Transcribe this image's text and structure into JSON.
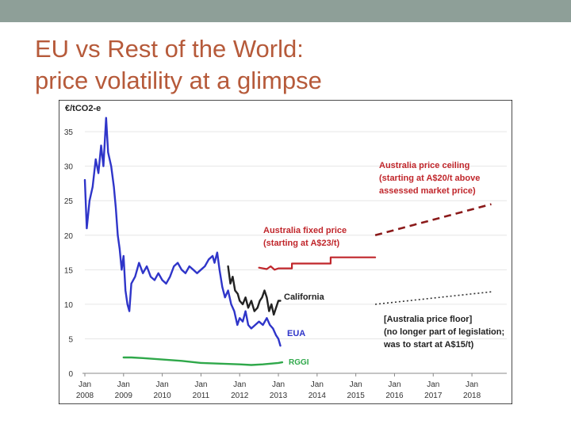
{
  "slide": {
    "title_line1": "EU vs Rest of the World:",
    "title_line2": "price volatility at a glimpse",
    "accent_color": "#b65a3a",
    "topbar_color": "#8e9f98"
  },
  "chart_data": {
    "type": "line",
    "title": "",
    "ylabel": "€/tCO2-e",
    "xlabel": "",
    "ylim": [
      0,
      38
    ],
    "xlim": [
      2008,
      2018.9
    ],
    "yticks": [
      0,
      5,
      10,
      15,
      20,
      25,
      30,
      35
    ],
    "xticks": [
      {
        "x": 2008,
        "top": "Jan",
        "bottom": "2008"
      },
      {
        "x": 2009,
        "top": "Jan",
        "bottom": "2009"
      },
      {
        "x": 2010,
        "top": "Jan",
        "bottom": "2010"
      },
      {
        "x": 2011,
        "top": "Jan",
        "bottom": "2011"
      },
      {
        "x": 2012,
        "top": "Jan",
        "bottom": "2012"
      },
      {
        "x": 2013,
        "top": "Jan",
        "bottom": "2013"
      },
      {
        "x": 2014,
        "top": "Jan",
        "bottom": "2014"
      },
      {
        "x": 2015,
        "top": "Jan",
        "bottom": "2015"
      },
      {
        "x": 2016,
        "top": "Jan",
        "bottom": "2016"
      },
      {
        "x": 2017,
        "top": "Jan",
        "bottom": "2017"
      },
      {
        "x": 2018,
        "top": "Jan",
        "bottom": "2018"
      }
    ],
    "grid": true,
    "series": [
      {
        "name": "EUA",
        "color": "#2f35c9",
        "style": "solid",
        "points": [
          [
            2008.0,
            28
          ],
          [
            2008.05,
            21
          ],
          [
            2008.12,
            25
          ],
          [
            2008.2,
            27
          ],
          [
            2008.28,
            31
          ],
          [
            2008.35,
            29
          ],
          [
            2008.42,
            33
          ],
          [
            2008.48,
            30
          ],
          [
            2008.55,
            37
          ],
          [
            2008.6,
            32
          ],
          [
            2008.68,
            30
          ],
          [
            2008.75,
            27
          ],
          [
            2008.8,
            24
          ],
          [
            2008.85,
            20
          ],
          [
            2008.9,
            18
          ],
          [
            2008.95,
            15
          ],
          [
            2009.0,
            17
          ],
          [
            2009.05,
            12
          ],
          [
            2009.1,
            10
          ],
          [
            2009.15,
            9
          ],
          [
            2009.2,
            13
          ],
          [
            2009.3,
            14
          ],
          [
            2009.4,
            16
          ],
          [
            2009.5,
            14.5
          ],
          [
            2009.6,
            15.5
          ],
          [
            2009.7,
            14
          ],
          [
            2009.8,
            13.5
          ],
          [
            2009.9,
            14.5
          ],
          [
            2010.0,
            13.5
          ],
          [
            2010.1,
            13
          ],
          [
            2010.2,
            14
          ],
          [
            2010.3,
            15.5
          ],
          [
            2010.4,
            16
          ],
          [
            2010.5,
            15
          ],
          [
            2010.6,
            14.5
          ],
          [
            2010.7,
            15.5
          ],
          [
            2010.8,
            15
          ],
          [
            2010.9,
            14.5
          ],
          [
            2011.0,
            15
          ],
          [
            2011.1,
            15.5
          ],
          [
            2011.2,
            16.5
          ],
          [
            2011.3,
            17
          ],
          [
            2011.35,
            16
          ],
          [
            2011.42,
            17.5
          ],
          [
            2011.48,
            15
          ],
          [
            2011.55,
            12.5
          ],
          [
            2011.62,
            11
          ],
          [
            2011.7,
            12
          ],
          [
            2011.78,
            10
          ],
          [
            2011.86,
            9
          ],
          [
            2011.94,
            7
          ],
          [
            2012.0,
            8
          ],
          [
            2012.08,
            7.5
          ],
          [
            2012.15,
            9
          ],
          [
            2012.22,
            7
          ],
          [
            2012.3,
            6.5
          ],
          [
            2012.4,
            7
          ],
          [
            2012.5,
            7.5
          ],
          [
            2012.6,
            7
          ],
          [
            2012.7,
            8
          ],
          [
            2012.78,
            7
          ],
          [
            2012.86,
            6.5
          ],
          [
            2012.94,
            5.5
          ],
          [
            2013.0,
            5
          ],
          [
            2013.05,
            4
          ]
        ]
      },
      {
        "name": "California",
        "color": "#222222",
        "style": "solid",
        "points": [
          [
            2011.7,
            15.5
          ],
          [
            2011.76,
            13
          ],
          [
            2011.82,
            14
          ],
          [
            2011.88,
            12
          ],
          [
            2011.95,
            11.5
          ],
          [
            2012.0,
            10.5
          ],
          [
            2012.08,
            10
          ],
          [
            2012.15,
            11
          ],
          [
            2012.22,
            9.5
          ],
          [
            2012.3,
            10.5
          ],
          [
            2012.38,
            9
          ],
          [
            2012.46,
            9.5
          ],
          [
            2012.52,
            10.5
          ],
          [
            2012.58,
            11
          ],
          [
            2012.64,
            12
          ],
          [
            2012.7,
            11
          ],
          [
            2012.76,
            9
          ],
          [
            2012.82,
            10
          ],
          [
            2012.88,
            8.5
          ],
          [
            2012.94,
            9.5
          ],
          [
            2013.0,
            10.5
          ],
          [
            2013.05,
            10.5
          ]
        ]
      },
      {
        "name": "Australia fixed price",
        "color": "#c0262b",
        "style": "solid",
        "points": [
          [
            2012.5,
            15.3
          ],
          [
            2012.7,
            15.1
          ],
          [
            2012.8,
            15.5
          ],
          [
            2012.9,
            15.0
          ],
          [
            2013.0,
            15.2
          ],
          [
            2013.1,
            15.2
          ],
          [
            2013.35,
            15.2
          ],
          [
            2013.35,
            15.9
          ],
          [
            2014.35,
            15.9
          ],
          [
            2014.35,
            16.8
          ],
          [
            2015.5,
            16.8
          ]
        ]
      },
      {
        "name": "Australia price ceiling",
        "color": "#8b1a1a",
        "style": "dashed",
        "points": [
          [
            2015.5,
            20
          ],
          [
            2016.5,
            21.5
          ],
          [
            2017.5,
            23
          ],
          [
            2018.5,
            24.5
          ]
        ]
      },
      {
        "name": "Australia price floor",
        "color": "#333333",
        "style": "dotted",
        "points": [
          [
            2015.5,
            10
          ],
          [
            2016.5,
            10.6
          ],
          [
            2017.5,
            11.2
          ],
          [
            2018.5,
            11.8
          ]
        ]
      },
      {
        "name": "RGGI",
        "color": "#2fa84a",
        "style": "solid",
        "points": [
          [
            2009.0,
            2.3
          ],
          [
            2009.2,
            2.3
          ],
          [
            2009.5,
            2.2
          ],
          [
            2010.0,
            2.0
          ],
          [
            2010.5,
            1.8
          ],
          [
            2011.0,
            1.5
          ],
          [
            2011.5,
            1.4
          ],
          [
            2012.0,
            1.3
          ],
          [
            2012.3,
            1.2
          ],
          [
            2012.6,
            1.3
          ],
          [
            2013.0,
            1.5
          ],
          [
            2013.1,
            1.6
          ]
        ]
      }
    ],
    "annotations": [
      {
        "id": "ceiling",
        "lines": [
          "Australia price ceiling",
          "(starting at A$20/t above",
          "assessed market price)"
        ]
      },
      {
        "id": "fixed",
        "lines": [
          "Australia fixed price",
          "(starting at A$23/t)"
        ]
      },
      {
        "id": "california",
        "lines": [
          "California"
        ]
      },
      {
        "id": "floor",
        "lines": [
          "[Australia price floor]",
          "(no longer part of legislation;",
          "was to start at A$15/t)"
        ]
      },
      {
        "id": "eua",
        "lines": [
          "EUA"
        ]
      },
      {
        "id": "rggi",
        "lines": [
          "RGGI"
        ]
      }
    ]
  }
}
